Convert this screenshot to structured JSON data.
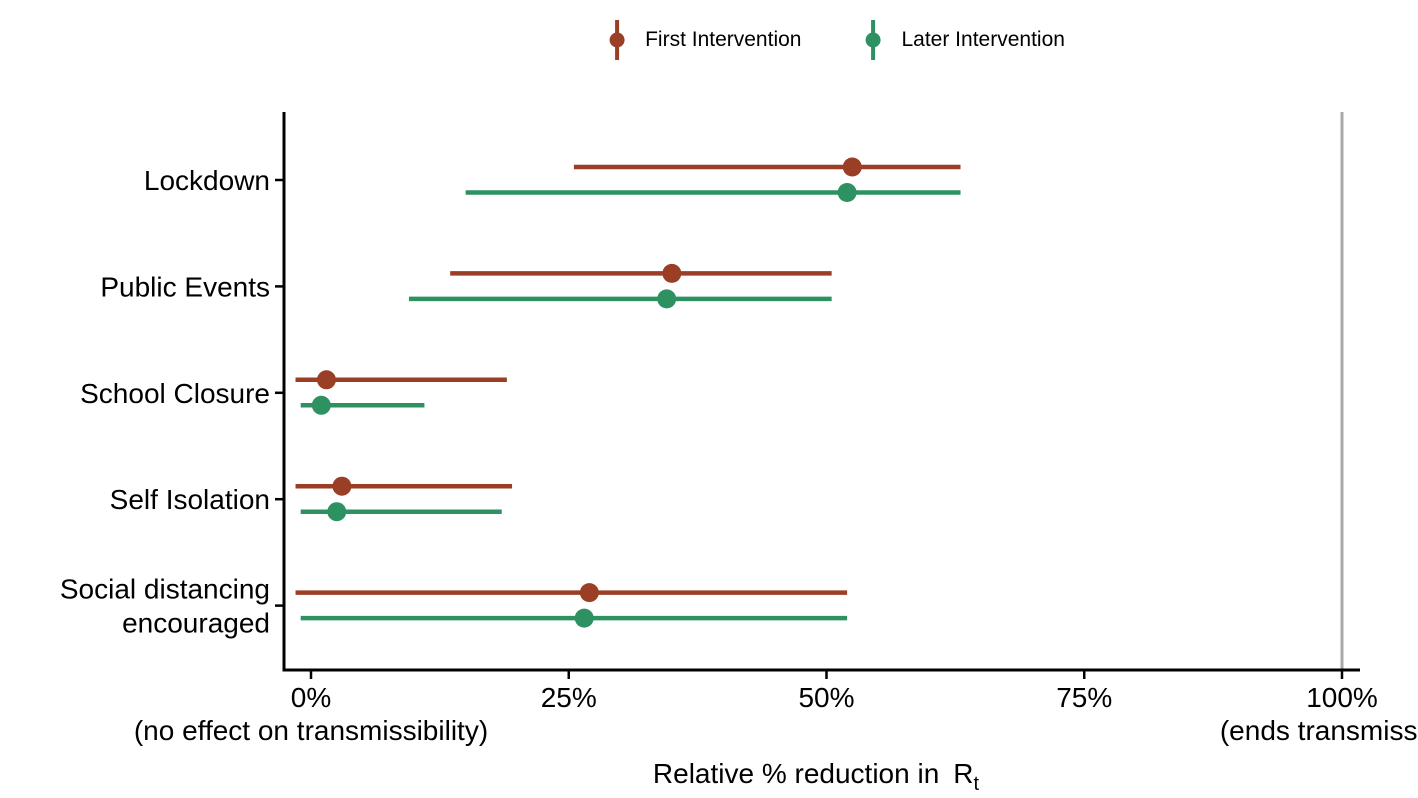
{
  "legend": {
    "items": [
      {
        "label": "First Intervention"
      },
      {
        "label": "Later Intervention"
      }
    ]
  },
  "chart_data": {
    "type": "pointrange",
    "orientation": "horizontal",
    "title": "",
    "categories": [
      "Lockdown",
      "Public Events",
      "School Closure",
      "Self Isolation",
      "Social distancing\nencouraged"
    ],
    "series": [
      {
        "name": "First Intervention",
        "color": "#9a3e26",
        "points": [
          {
            "category": "Lockdown",
            "mean": 52.5,
            "lower": 25.5,
            "upper": 63
          },
          {
            "category": "Public Events",
            "mean": 35,
            "lower": 13.5,
            "upper": 50.5
          },
          {
            "category": "School Closure",
            "mean": 1.5,
            "lower": -1.5,
            "upper": 19
          },
          {
            "category": "Self Isolation",
            "mean": 3,
            "lower": -1.5,
            "upper": 19.5
          },
          {
            "category": "Social distancing encouraged",
            "mean": 27,
            "lower": -1.5,
            "upper": 52
          }
        ]
      },
      {
        "name": "Later Intervention",
        "color": "#2d9162",
        "points": [
          {
            "category": "Lockdown",
            "mean": 52,
            "lower": 15,
            "upper": 63
          },
          {
            "category": "Public Events",
            "mean": 34.5,
            "lower": 9.5,
            "upper": 50.5
          },
          {
            "category": "School Closure",
            "mean": 1,
            "lower": -1,
            "upper": 11
          },
          {
            "category": "Self Isolation",
            "mean": 2.5,
            "lower": -1,
            "upper": 18.5
          },
          {
            "category": "Social distancing encouraged",
            "mean": 26.5,
            "lower": -1,
            "upper": 52
          }
        ]
      }
    ],
    "xlim": [
      0,
      100
    ],
    "x_ticks": [
      0,
      25,
      50,
      75,
      100
    ],
    "x_tick_labels": [
      "0%",
      "25%",
      "50%",
      "75%",
      "100%"
    ],
    "xlabel": "Relative % reduction in",
    "xlabel_symbol": "R",
    "xlabel_subscript": "t",
    "annotation_zero": "(no effect on transmissibility)",
    "annotation_hundred": "(ends transmission)",
    "reference_line_x": 100,
    "legend_position": "top",
    "grid": "off",
    "colors": {
      "axis": "#000000",
      "text": "#000000",
      "reference_line": "#a8a8a8",
      "background": "#ffffff"
    }
  }
}
